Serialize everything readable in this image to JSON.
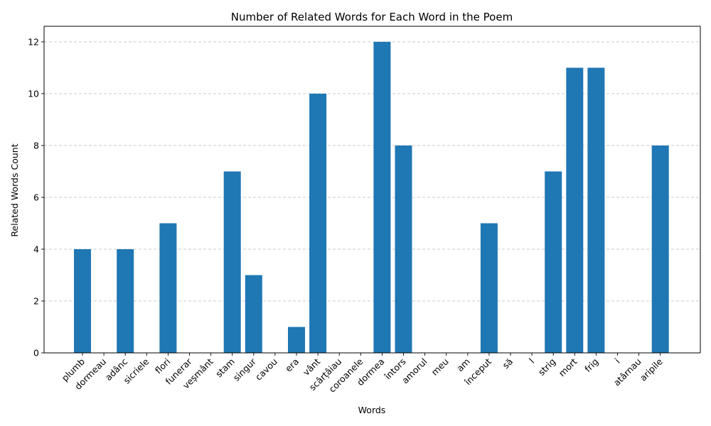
{
  "chart_data": {
    "type": "bar",
    "title": "Number of Related Words for Each Word in the Poem",
    "xlabel": "Words",
    "ylabel": "Related Words Count",
    "categories": [
      "plumb",
      "dormeau",
      "adânc",
      "sicriele",
      "flori",
      "funerar",
      "veșmânt",
      "stam",
      "singur",
      "cavou",
      "era",
      "vânt",
      "scârțâiau",
      "coroanele",
      "dormea",
      "întors",
      "amorul",
      "meu",
      "am",
      "început",
      "să",
      "l",
      "strig",
      "mort",
      "frig",
      "i",
      "atârnau",
      "aripile"
    ],
    "values": [
      4,
      0,
      4,
      0,
      5,
      0,
      0,
      7,
      3,
      0,
      1,
      10,
      0,
      0,
      12,
      8,
      0,
      0,
      0,
      5,
      0,
      0,
      7,
      11,
      11,
      0,
      0,
      8
    ],
    "ylim": [
      0,
      12.6
    ],
    "yticks": [
      0,
      2,
      4,
      6,
      8,
      10,
      12
    ],
    "grid": "y-dashed",
    "bar_color": "#1f77b4"
  }
}
